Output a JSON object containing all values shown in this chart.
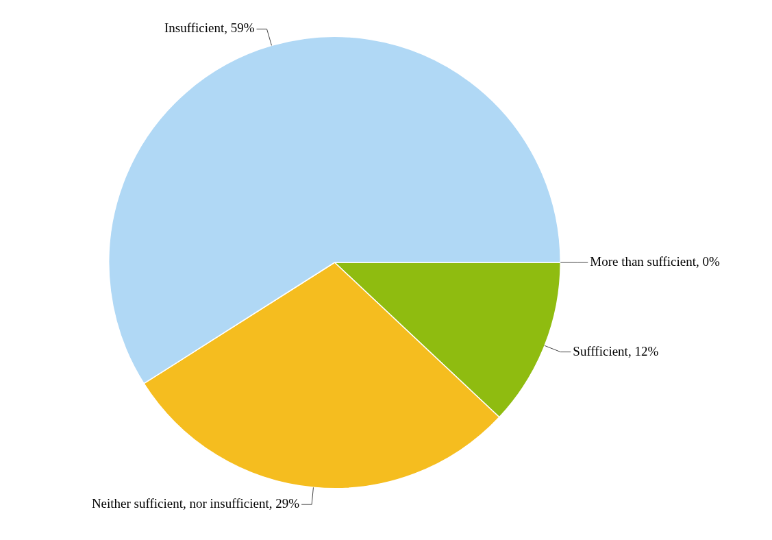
{
  "chart_data": {
    "type": "pie",
    "categories": [
      "More than sufficient",
      "Suffficient",
      "Neither sufficient, nor insufficient",
      "Insufficient"
    ],
    "values": [
      0,
      12,
      29,
      59
    ],
    "value_labels": [
      "0%",
      "12%",
      "29%",
      "59%"
    ],
    "colors": [
      "#8064a2",
      "#8fbc10",
      "#f5bd1f",
      "#b0d8f5"
    ]
  }
}
